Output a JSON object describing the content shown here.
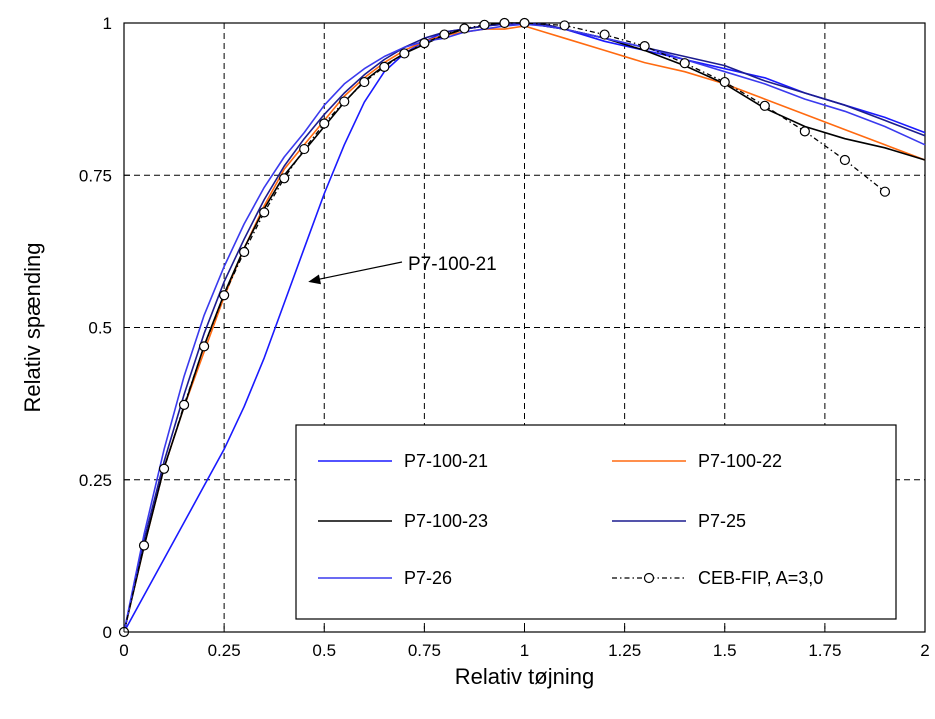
{
  "chart_data": {
    "type": "line",
    "title": "",
    "xlabel": "Relativ tøjning",
    "ylabel": "Relativ spænding",
    "xlim": [
      0,
      2
    ],
    "ylim": [
      0,
      1
    ],
    "x_ticks": [
      0,
      0.25,
      0.5,
      0.75,
      1,
      1.25,
      1.5,
      1.75,
      2
    ],
    "x_tick_labels": [
      "0",
      "0.25",
      "0.5",
      "0.75",
      "1",
      "1.25",
      "1.5",
      "1.75",
      "2"
    ],
    "y_ticks": [
      0,
      0.25,
      0.5,
      0.75,
      1
    ],
    "y_tick_labels": [
      "0",
      "0.25",
      "0.5",
      "0.75",
      "1"
    ],
    "grid": true,
    "legend_position": "bottom-right",
    "series": [
      {
        "name": "P7-100-21",
        "color": "#1a1aff",
        "style": "solid",
        "x": [
          0,
          0.05,
          0.1,
          0.15,
          0.2,
          0.25,
          0.3,
          0.35,
          0.4,
          0.45,
          0.5,
          0.55,
          0.6,
          0.65,
          0.7,
          0.75,
          0.8,
          0.85,
          0.9,
          0.95,
          1.0,
          1.05,
          1.1,
          1.15,
          1.2,
          1.3,
          1.4,
          1.5,
          1.6,
          1.7,
          1.8,
          1.9,
          2.0
        ],
        "y": [
          0,
          0.06,
          0.12,
          0.18,
          0.24,
          0.3,
          0.37,
          0.45,
          0.54,
          0.63,
          0.72,
          0.8,
          0.87,
          0.92,
          0.95,
          0.97,
          0.985,
          0.99,
          0.995,
          0.998,
          1.0,
          0.995,
          0.99,
          0.98,
          0.97,
          0.955,
          0.94,
          0.925,
          0.91,
          0.885,
          0.865,
          0.845,
          0.82
        ]
      },
      {
        "name": "P7-100-22",
        "color": "#ff6a10",
        "style": "solid",
        "x": [
          0,
          0.05,
          0.1,
          0.15,
          0.2,
          0.25,
          0.3,
          0.35,
          0.4,
          0.45,
          0.5,
          0.55,
          0.6,
          0.65,
          0.7,
          0.75,
          0.8,
          0.85,
          0.9,
          0.95,
          1.0,
          1.05,
          1.1,
          1.2,
          1.3,
          1.4,
          1.5,
          1.6,
          1.7,
          1.8,
          1.9,
          2.0
        ],
        "y": [
          0,
          0.14,
          0.27,
          0.37,
          0.46,
          0.55,
          0.63,
          0.7,
          0.76,
          0.8,
          0.84,
          0.88,
          0.91,
          0.935,
          0.955,
          0.97,
          0.98,
          0.985,
          0.99,
          0.99,
          0.995,
          0.985,
          0.975,
          0.955,
          0.935,
          0.92,
          0.9,
          0.875,
          0.85,
          0.825,
          0.8,
          0.775
        ]
      },
      {
        "name": "P7-100-23",
        "color": "#000000",
        "style": "solid",
        "x": [
          0,
          0.05,
          0.1,
          0.15,
          0.2,
          0.25,
          0.3,
          0.35,
          0.4,
          0.45,
          0.5,
          0.55,
          0.6,
          0.65,
          0.7,
          0.75,
          0.8,
          0.85,
          0.9,
          0.95,
          1.0,
          1.05,
          1.1,
          1.2,
          1.3,
          1.4,
          1.5,
          1.6,
          1.7,
          1.8,
          1.9,
          2.0
        ],
        "y": [
          0,
          0.14,
          0.27,
          0.37,
          0.47,
          0.555,
          0.63,
          0.695,
          0.75,
          0.79,
          0.83,
          0.87,
          0.905,
          0.93,
          0.95,
          0.965,
          0.98,
          0.99,
          0.995,
          1.0,
          1.0,
          0.995,
          0.99,
          0.975,
          0.955,
          0.93,
          0.9,
          0.86,
          0.83,
          0.81,
          0.795,
          0.775
        ]
      },
      {
        "name": "P7-25",
        "color": "#1c1c8f",
        "style": "solid",
        "x": [
          0,
          0.05,
          0.1,
          0.15,
          0.2,
          0.25,
          0.3,
          0.35,
          0.4,
          0.45,
          0.5,
          0.55,
          0.6,
          0.65,
          0.7,
          0.75,
          0.8,
          0.85,
          0.9,
          0.95,
          1.0,
          1.05,
          1.1,
          1.2,
          1.3,
          1.4,
          1.5,
          1.6,
          1.7,
          1.8,
          1.9,
          2.0
        ],
        "y": [
          0,
          0.15,
          0.28,
          0.39,
          0.49,
          0.575,
          0.645,
          0.71,
          0.765,
          0.81,
          0.85,
          0.885,
          0.915,
          0.94,
          0.96,
          0.975,
          0.985,
          0.99,
          0.995,
          0.998,
          1.0,
          0.998,
          0.99,
          0.975,
          0.96,
          0.945,
          0.93,
          0.905,
          0.885,
          0.865,
          0.84,
          0.815
        ]
      },
      {
        "name": "P7-26",
        "color": "#3a3aee",
        "style": "solid",
        "x": [
          0,
          0.05,
          0.1,
          0.15,
          0.2,
          0.25,
          0.3,
          0.35,
          0.4,
          0.45,
          0.5,
          0.55,
          0.6,
          0.65,
          0.7,
          0.75,
          0.8,
          0.85,
          0.9,
          0.95,
          1.0,
          1.05,
          1.1,
          1.2,
          1.3,
          1.4,
          1.5,
          1.6,
          1.7,
          1.8,
          1.9,
          2.0
        ],
        "y": [
          0,
          0.16,
          0.3,
          0.42,
          0.52,
          0.6,
          0.67,
          0.73,
          0.78,
          0.82,
          0.865,
          0.9,
          0.925,
          0.945,
          0.96,
          0.97,
          0.975,
          0.985,
          0.99,
          0.995,
          0.998,
          0.995,
          0.99,
          0.975,
          0.96,
          0.94,
          0.92,
          0.9,
          0.875,
          0.855,
          0.83,
          0.8
        ]
      },
      {
        "name": "CEB-FIP,  A=3,0",
        "color": "#000000",
        "style": "dashdot-markers",
        "x": [
          0,
          0.05,
          0.1,
          0.15,
          0.2,
          0.25,
          0.3,
          0.35,
          0.4,
          0.45,
          0.5,
          0.55,
          0.6,
          0.65,
          0.7,
          0.75,
          0.8,
          0.85,
          0.9,
          0.95,
          1.0,
          1.1,
          1.2,
          1.3,
          1.4,
          1.5,
          1.6,
          1.7,
          1.8,
          1.9
        ],
        "y": [
          0,
          0.142,
          0.268,
          0.373,
          0.469,
          0.553,
          0.624,
          0.689,
          0.745,
          0.793,
          0.835,
          0.871,
          0.903,
          0.928,
          0.95,
          0.967,
          0.981,
          0.991,
          0.997,
          1.0,
          1.0,
          0.996,
          0.981,
          0.962,
          0.934,
          0.903,
          0.864,
          0.822,
          0.775,
          0.723
        ]
      }
    ],
    "annotations": [
      {
        "text": "P7-100-21",
        "arrow_target": [
          0.46,
          0.575
        ]
      }
    ]
  }
}
